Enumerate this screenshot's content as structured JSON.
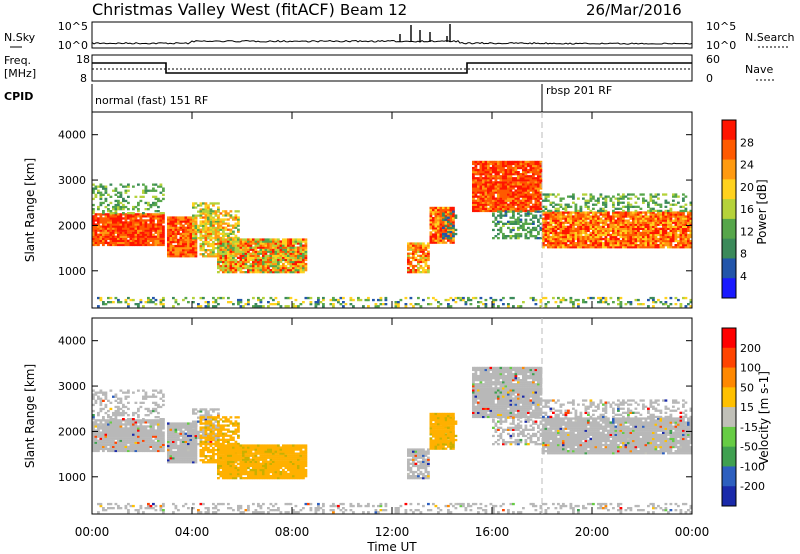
{
  "header": {
    "title": "Christmas Valley West (fitACF)",
    "beam": "Beam 12",
    "date": "26/Mar/2016"
  },
  "top_panels": {
    "nsky_label": "N.Sky",
    "nsearch_label": "N.Search",
    "nsky_ticks": [
      "10^5",
      "10^0"
    ],
    "nsearch_ticks": [
      "10^5",
      "10^0"
    ],
    "freq_label_1": "Freq.",
    "freq_label_2": "[MHz]",
    "freq_ticks": [
      "18",
      "8"
    ],
    "nave_label": "Nave",
    "nave_ticks": [
      "60",
      "0"
    ],
    "cpid_label": "CPID",
    "cpid_1": "normal (fast) 151 RF",
    "cpid_2": "rbsp 201 RF"
  },
  "colors": {
    "power_scale": [
      "#1a1aff",
      "#2255aa",
      "#3b8a5a",
      "#56a64a",
      "#b5d23a",
      "#ffd21e",
      "#ff9a10",
      "#ff5a00",
      "#ff1500"
    ],
    "velocity_scale": [
      "#1a2aaa",
      "#2d5fbf",
      "#3fa050",
      "#66cc44",
      "#c0c0b8",
      "#ffc000",
      "#ff8800",
      "#ff4400",
      "#ff0000"
    ],
    "ground_scatter": "#b8b8b8"
  },
  "chart_data": [
    {
      "type": "heatmap",
      "name": "power",
      "ylabel": "Slant Range [km]",
      "xlabel": "Time UT",
      "x_ticks": [
        "00:00",
        "04:00",
        "08:00",
        "12:00",
        "16:00",
        "20:00",
        "00:00"
      ],
      "y_ticks": [
        1000,
        2000,
        3000,
        4000
      ],
      "ylim": [
        180,
        4500
      ],
      "xlim_hours": [
        0,
        24
      ],
      "colorbar_label": "Power [dB]",
      "colorbar_ticks": [
        "28",
        "24",
        "20",
        "16",
        "12",
        "8",
        "4"
      ],
      "colorbar_range": [
        0,
        30
      ]
    },
    {
      "type": "heatmap",
      "name": "velocity",
      "ylabel": "Slant Range [km]",
      "xlabel": "Time UT",
      "x_ticks": [
        "00:00",
        "04:00",
        "08:00",
        "12:00",
        "16:00",
        "20:00",
        "00:00"
      ],
      "y_ticks": [
        1000,
        2000,
        3000,
        4000
      ],
      "ylim": [
        180,
        4500
      ],
      "xlim_hours": [
        0,
        24
      ],
      "colorbar_label": "Velocity [m s-1]",
      "colorbar_ticks": [
        "200",
        "100",
        "50",
        "15",
        "-15",
        "-50",
        "-100",
        "-200"
      ]
    }
  ]
}
